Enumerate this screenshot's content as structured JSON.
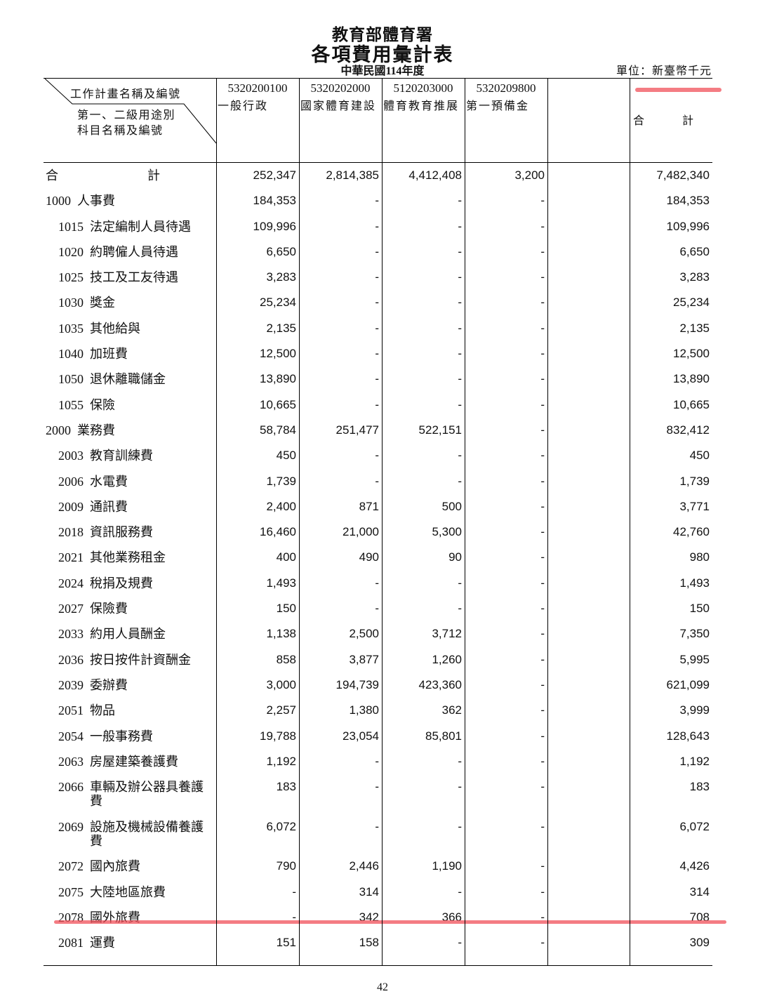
{
  "header": {
    "org": "教育部體育署",
    "title": "各項費用彙計表",
    "year": "中華民國114年度",
    "unit": "單位：新臺幣千元"
  },
  "table": {
    "corner": {
      "top": "工作計畫名稱及編號",
      "bottom": [
        "第一、二級用途別",
        "科目名稱及編號"
      ]
    },
    "columns": [
      {
        "code": "5320200100",
        "name": "一般行政"
      },
      {
        "code": "5320202000",
        "name": "國家體育建設"
      },
      {
        "code": "5120203000",
        "name": "體育教育推展"
      },
      {
        "code": "5320209800",
        "name": "第一預備金"
      }
    ],
    "total_column": "合計",
    "rows": [
      {
        "name": "合計",
        "values": [
          "252,347",
          "2,814,385",
          "4,412,408",
          "3,200",
          "7,482,340"
        ]
      },
      {
        "code": "1000",
        "name": "人事費",
        "values": [
          "184,353",
          "-",
          "-",
          "-",
          "184,353"
        ]
      },
      {
        "code": "1015",
        "name": "法定編制人員待遇",
        "values": [
          "109,996",
          "-",
          "-",
          "-",
          "109,996"
        ]
      },
      {
        "code": "1020",
        "name": "約聘僱人員待遇",
        "values": [
          "6,650",
          "-",
          "-",
          "-",
          "6,650"
        ]
      },
      {
        "code": "1025",
        "name": "技工及工友待遇",
        "values": [
          "3,283",
          "-",
          "-",
          "-",
          "3,283"
        ]
      },
      {
        "code": "1030",
        "name": "獎金",
        "values": [
          "25,234",
          "-",
          "-",
          "-",
          "25,234"
        ]
      },
      {
        "code": "1035",
        "name": "其他給與",
        "values": [
          "2,135",
          "-",
          "-",
          "-",
          "2,135"
        ]
      },
      {
        "code": "1040",
        "name": "加班費",
        "values": [
          "12,500",
          "-",
          "-",
          "-",
          "12,500"
        ]
      },
      {
        "code": "1050",
        "name": "退休離職儲金",
        "values": [
          "13,890",
          "-",
          "-",
          "-",
          "13,890"
        ]
      },
      {
        "code": "1055",
        "name": "保險",
        "values": [
          "10,665",
          "-",
          "-",
          "-",
          "10,665"
        ]
      },
      {
        "code": "2000",
        "name": "業務費",
        "values": [
          "58,784",
          "251,477",
          "522,151",
          "-",
          "832,412"
        ]
      },
      {
        "code": "2003",
        "name": "教育訓練費",
        "values": [
          "450",
          "-",
          "-",
          "-",
          "450"
        ]
      },
      {
        "code": "2006",
        "name": "水電費",
        "values": [
          "1,739",
          "-",
          "-",
          "-",
          "1,739"
        ]
      },
      {
        "code": "2009",
        "name": "通訊費",
        "values": [
          "2,400",
          "871",
          "500",
          "-",
          "3,771"
        ]
      },
      {
        "code": "2018",
        "name": "資訊服務費",
        "values": [
          "16,460",
          "21,000",
          "5,300",
          "-",
          "42,760"
        ]
      },
      {
        "code": "2021",
        "name": "其他業務租金",
        "values": [
          "400",
          "490",
          "90",
          "-",
          "980"
        ]
      },
      {
        "code": "2024",
        "name": "稅捐及規費",
        "values": [
          "1,493",
          "-",
          "-",
          "-",
          "1,493"
        ]
      },
      {
        "code": "2027",
        "name": "保險費",
        "values": [
          "150",
          "-",
          "-",
          "-",
          "150"
        ]
      },
      {
        "code": "2033",
        "name": "約用人員酬金",
        "values": [
          "1,138",
          "2,500",
          "3,712",
          "-",
          "7,350"
        ]
      },
      {
        "code": "2036",
        "name": "按日按件計資酬金",
        "values": [
          "858",
          "3,877",
          "1,260",
          "-",
          "5,995"
        ]
      },
      {
        "code": "2039",
        "name": "委辦費",
        "values": [
          "3,000",
          "194,739",
          "423,360",
          "-",
          "621,099"
        ]
      },
      {
        "code": "2051",
        "name": "物品",
        "values": [
          "2,257",
          "1,380",
          "362",
          "-",
          "3,999"
        ]
      },
      {
        "code": "2054",
        "name": "一般事務費",
        "values": [
          "19,788",
          "23,054",
          "85,801",
          "-",
          "128,643"
        ]
      },
      {
        "code": "2063",
        "name": "房屋建築養護費",
        "values": [
          "1,192",
          "-",
          "-",
          "-",
          "1,192"
        ]
      },
      {
        "code": "2066",
        "name": "車輛及辦公器具養護費",
        "values": [
          "183",
          "-",
          "-",
          "-",
          "183"
        ]
      },
      {
        "code": "2069",
        "name": "設施及機械設備養護費",
        "values": [
          "6,072",
          "-",
          "-",
          "-",
          "6,072"
        ]
      },
      {
        "code": "2072",
        "name": "國內旅費",
        "values": [
          "790",
          "2,446",
          "1,190",
          "-",
          "4,426"
        ]
      },
      {
        "code": "2075",
        "name": "大陸地區旅費",
        "values": [
          "-",
          "314",
          "-",
          "-",
          "314"
        ]
      },
      {
        "code": "2078",
        "name": "國外旅費",
        "values": [
          "-",
          "342",
          "366",
          "-",
          "708"
        ]
      },
      {
        "code": "2081",
        "name": "運費",
        "values": [
          "151",
          "158",
          "-",
          "-",
          "309"
        ]
      }
    ]
  },
  "footer": {
    "page": "42"
  }
}
